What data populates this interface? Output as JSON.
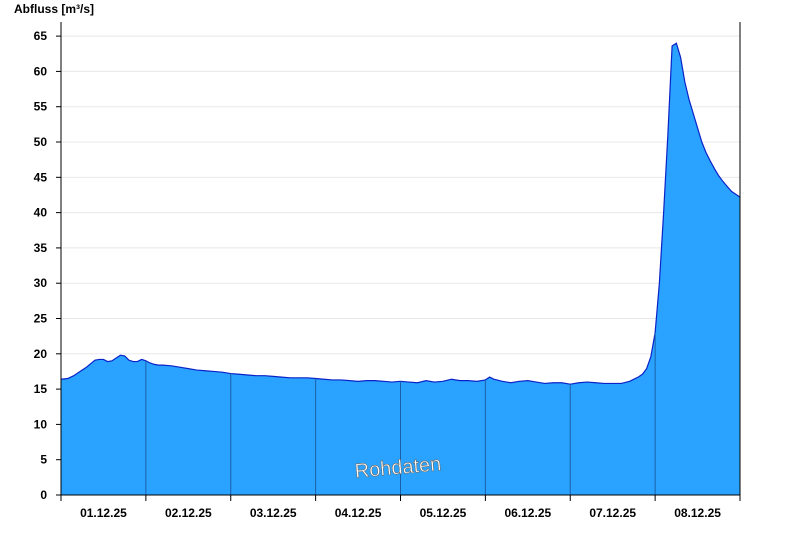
{
  "chart_data": {
    "type": "area",
    "title": "",
    "ylabel": "Abfluss [m³/s]",
    "xlabel": "",
    "ylim": [
      0,
      67
    ],
    "y_ticks": [
      0,
      5,
      10,
      15,
      20,
      25,
      30,
      35,
      40,
      45,
      50,
      55,
      60,
      65
    ],
    "x_range_days": [
      0,
      8
    ],
    "x_tick_labels": [
      "01.12.25",
      "02.12.25",
      "03.12.25",
      "04.12.25",
      "05.12.25",
      "06.12.25",
      "07.12.25",
      "08.12.25"
    ],
    "grid": true,
    "watermark": "Rohdaten",
    "colors": {
      "fill": "#29a3ff",
      "line": "#0b22c8",
      "day_divider": "#1b5fa8",
      "grid": "#e8e8e8"
    },
    "series": [
      {
        "x": [
          0.0,
          0.08,
          0.15,
          0.2,
          0.25,
          0.3,
          0.35,
          0.4,
          0.45,
          0.5,
          0.55,
          0.6,
          0.65,
          0.7,
          0.75,
          0.8,
          0.85,
          0.9,
          0.95,
          1.0,
          1.05,
          1.1,
          1.15,
          1.2,
          1.3,
          1.4,
          1.5,
          1.6,
          1.7,
          1.8,
          1.9,
          2.0,
          2.1,
          2.2,
          2.3,
          2.4,
          2.5,
          2.6,
          2.7,
          2.8,
          2.9,
          3.0,
          3.1,
          3.2,
          3.3,
          3.4,
          3.5,
          3.6,
          3.7,
          3.8,
          3.9,
          4.0,
          4.1,
          4.2,
          4.3,
          4.4,
          4.5,
          4.6,
          4.7,
          4.8,
          4.9,
          5.0,
          5.05,
          5.1,
          5.2,
          5.3,
          5.4,
          5.5,
          5.6,
          5.7,
          5.8,
          5.9,
          6.0,
          6.1,
          6.2,
          6.3,
          6.4,
          6.5,
          6.6,
          6.7,
          6.8,
          6.85,
          6.9,
          6.95,
          7.0,
          7.05,
          7.1,
          7.15,
          7.2,
          7.25,
          7.3,
          7.35,
          7.4,
          7.45,
          7.5,
          7.55,
          7.6,
          7.65,
          7.7,
          7.75,
          7.8,
          7.85,
          7.9,
          7.95,
          8.0
        ],
        "y": [
          16.4,
          16.5,
          16.9,
          17.3,
          17.7,
          18.1,
          18.6,
          19.1,
          19.2,
          19.2,
          18.9,
          19.0,
          19.4,
          19.8,
          19.7,
          19.1,
          18.9,
          18.9,
          19.2,
          19.0,
          18.7,
          18.5,
          18.4,
          18.4,
          18.3,
          18.1,
          17.9,
          17.7,
          17.6,
          17.5,
          17.4,
          17.2,
          17.1,
          17.0,
          16.9,
          16.9,
          16.8,
          16.7,
          16.6,
          16.6,
          16.6,
          16.5,
          16.4,
          16.3,
          16.3,
          16.2,
          16.1,
          16.2,
          16.2,
          16.1,
          16.0,
          16.1,
          16.0,
          15.9,
          16.2,
          16.0,
          16.1,
          16.4,
          16.2,
          16.2,
          16.1,
          16.3,
          16.7,
          16.4,
          16.1,
          15.9,
          16.1,
          16.2,
          16.0,
          15.8,
          15.9,
          15.9,
          15.7,
          15.9,
          16.0,
          15.9,
          15.8,
          15.8,
          15.8,
          16.1,
          16.7,
          17.1,
          17.9,
          19.6,
          23.0,
          30.0,
          40.0,
          51.0,
          63.6,
          64.0,
          62.0,
          58.5,
          56.0,
          54.0,
          52.0,
          50.0,
          48.5,
          47.3,
          46.2,
          45.2,
          44.4,
          43.7,
          43.0,
          42.6,
          42.2
        ]
      }
    ]
  }
}
